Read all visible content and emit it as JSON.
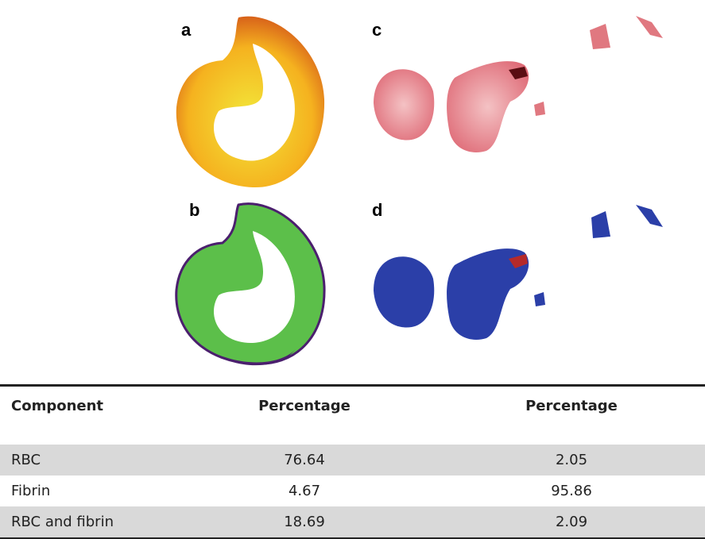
{
  "panels": [
    {
      "label": "a"
    },
    {
      "label": "b"
    },
    {
      "label": "c"
    },
    {
      "label": "d"
    }
  ],
  "table": {
    "header": [
      "Component",
      "Percentage",
      "Percentage"
    ],
    "rows": [
      [
        "RBC",
        76.64,
        2.05
      ],
      [
        "Fibrin",
        4.67,
        95.86
      ],
      [
        "RBC and fibrin",
        18.69,
        2.09
      ]
    ]
  }
}
